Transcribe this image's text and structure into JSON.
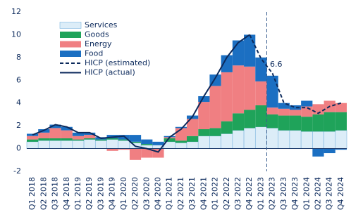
{
  "chart_data": {
    "type": "stacked-bar-line",
    "categories": [
      "Q1 2018",
      "Q2 2018",
      "Q3 2018",
      "Q4 2018",
      "Q1 2019",
      "Q2 2019",
      "Q3 2019",
      "Q4 2019",
      "Q1 2020",
      "Q2 2020",
      "Q3 2020",
      "Q4 2020",
      "Q1 2021",
      "Q2 2021",
      "Q3 2021",
      "Q4 2021",
      "Q1 2022",
      "Q2 2022",
      "Q3 2022",
      "Q4 2022",
      "Q1 2023",
      "Q2 2023",
      "Q3 2023",
      "Q4 2023",
      "Q1 2024",
      "Q2 2024",
      "Q3 2024",
      "Q4 2024"
    ],
    "series": [
      {
        "name": "Services",
        "kind": "bar",
        "color": "#dcedf8",
        "values": [
          0.6,
          0.7,
          0.7,
          0.7,
          0.7,
          0.8,
          0.7,
          0.8,
          0.7,
          0.5,
          0.3,
          0.3,
          0.6,
          0.5,
          0.6,
          1.1,
          1.1,
          1.3,
          1.6,
          1.8,
          1.9,
          1.8,
          1.6,
          1.6,
          1.5,
          1.5,
          1.5,
          1.6
        ]
      },
      {
        "name": "Goods",
        "kind": "bar",
        "color": "#1fa35a",
        "values": [
          0.2,
          0.2,
          0.2,
          0.2,
          0.1,
          0.1,
          0.1,
          0.1,
          0.1,
          0.1,
          0.1,
          0.0,
          0.3,
          0.2,
          0.5,
          0.6,
          0.7,
          1.1,
          1.5,
          1.6,
          1.9,
          1.2,
          1.3,
          1.3,
          1.3,
          1.5,
          1.7,
          1.6
        ]
      },
      {
        "name": "Energy",
        "kind": "bar",
        "color": "#f07f82",
        "values": [
          0.3,
          0.5,
          0.9,
          0.7,
          0.3,
          0.3,
          0.0,
          -0.2,
          -0.1,
          -1.0,
          -0.8,
          -0.8,
          0.1,
          1.1,
          1.5,
          2.4,
          3.7,
          4.3,
          4.2,
          3.8,
          2.1,
          0.6,
          0.6,
          0.5,
          0.9,
          0.9,
          1.0,
          0.8
        ]
      },
      {
        "name": "Food",
        "kind": "bar",
        "color": "#1b6fc2",
        "values": [
          0.2,
          0.3,
          0.3,
          0.3,
          0.3,
          0.2,
          0.2,
          0.3,
          0.4,
          0.6,
          0.4,
          0.3,
          0.1,
          0.1,
          0.3,
          0.5,
          1.0,
          1.5,
          2.2,
          2.8,
          2.1,
          2.8,
          0.5,
          0.4,
          0.5,
          -0.7,
          -0.4,
          -0.1
        ]
      },
      {
        "name": "HICP (estimated)",
        "kind": "line",
        "dash": true,
        "color": "#0c2a5c",
        "values": [
          null,
          null,
          null,
          null,
          null,
          null,
          null,
          null,
          null,
          null,
          null,
          null,
          null,
          null,
          null,
          null,
          null,
          null,
          null,
          10.0,
          7.9,
          6.6,
          4.0,
          3.6,
          3.6,
          3.1,
          3.7,
          4.0
        ]
      },
      {
        "name": "HICP (actual)",
        "kind": "line",
        "dash": false,
        "color": "#0c2a5c",
        "values": [
          1.2,
          1.6,
          2.1,
          1.9,
          1.4,
          1.4,
          0.9,
          1.0,
          1.1,
          0.2,
          0.0,
          -0.3,
          1.0,
          1.7,
          2.8,
          4.6,
          6.2,
          8.0,
          9.3,
          10.0,
          null,
          null,
          null,
          null,
          null,
          null,
          null,
          null
        ]
      }
    ],
    "annotation": "6.6",
    "ylim": [
      -2,
      12
    ],
    "yticks": [
      -2,
      0,
      2,
      4,
      6,
      8,
      10,
      12
    ],
    "grid": false
  }
}
